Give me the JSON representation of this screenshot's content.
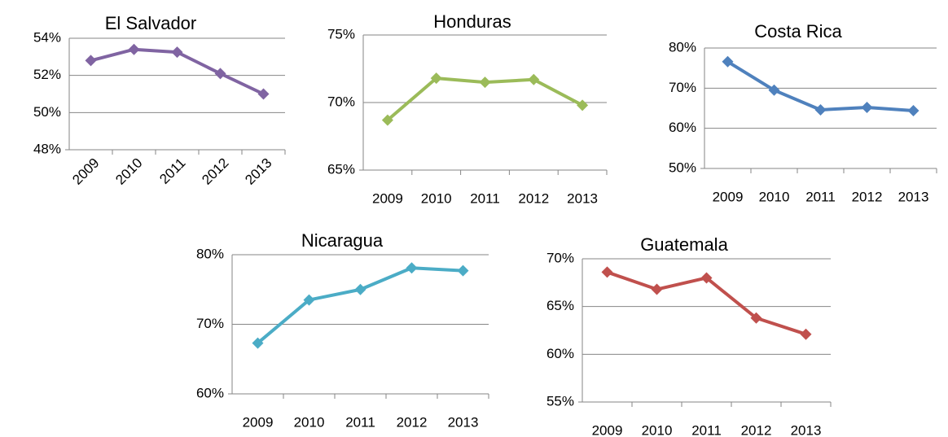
{
  "chart_data": [
    {
      "type": "line",
      "title": "El Salvador",
      "categories": [
        "2009",
        "2010",
        "2011",
        "2012",
        "2013"
      ],
      "series": [
        {
          "color": "#8064a2",
          "values": [
            52.8,
            53.4,
            53.25,
            52.1,
            51.0
          ]
        }
      ],
      "ylim": [
        48,
        54
      ],
      "yticks": [
        {
          "value": 48,
          "label": "48%"
        },
        {
          "value": 50,
          "label": "50%"
        },
        {
          "value": 52,
          "label": "52%"
        },
        {
          "value": 54,
          "label": "54%"
        }
      ],
      "grid": true
    },
    {
      "type": "line",
      "title": "Honduras",
      "categories": [
        "2009",
        "2010",
        "2011",
        "2012",
        "2013"
      ],
      "series": [
        {
          "color": "#9bbb59",
          "values": [
            68.7,
            71.8,
            71.5,
            71.7,
            69.8
          ]
        }
      ],
      "ylim": [
        65,
        75
      ],
      "yticks": [
        {
          "value": 65,
          "label": "65%"
        },
        {
          "value": 70,
          "label": "70%"
        },
        {
          "value": 75,
          "label": "75%"
        }
      ],
      "grid": true
    },
    {
      "type": "line",
      "title": "Costa Rica",
      "categories": [
        "2009",
        "2010",
        "2011",
        "2012",
        "2013"
      ],
      "series": [
        {
          "color": "#4f81bd",
          "values": [
            76.6,
            69.5,
            64.6,
            65.2,
            64.4
          ]
        }
      ],
      "ylim": [
        50,
        80
      ],
      "yticks": [
        {
          "value": 50,
          "label": "50%"
        },
        {
          "value": 60,
          "label": "60%"
        },
        {
          "value": 70,
          "label": "70%"
        },
        {
          "value": 80,
          "label": "80%"
        }
      ],
      "grid": true
    },
    {
      "type": "line",
      "title": "Nicaragua",
      "categories": [
        "2009",
        "2010",
        "2011",
        "2012",
        "2013"
      ],
      "series": [
        {
          "color": "#4bacc6",
          "values": [
            67.3,
            73.5,
            75.0,
            78.1,
            77.7
          ]
        }
      ],
      "ylim": [
        60,
        80
      ],
      "yticks": [
        {
          "value": 60,
          "label": "60%"
        },
        {
          "value": 70,
          "label": "70%"
        },
        {
          "value": 80,
          "label": "80%"
        }
      ],
      "grid": true
    },
    {
      "type": "line",
      "title": "Guatemala",
      "categories": [
        "2009",
        "2010",
        "2011",
        "2012",
        "2013"
      ],
      "series": [
        {
          "color": "#c0504d",
          "values": [
            68.6,
            66.8,
            68.0,
            63.8,
            62.1
          ]
        }
      ],
      "ylim": [
        55,
        70
      ],
      "yticks": [
        {
          "value": 55,
          "label": "55%"
        },
        {
          "value": 60,
          "label": "60%"
        },
        {
          "value": 65,
          "label": "65%"
        },
        {
          "value": 70,
          "label": "70%"
        }
      ],
      "grid": true
    }
  ]
}
